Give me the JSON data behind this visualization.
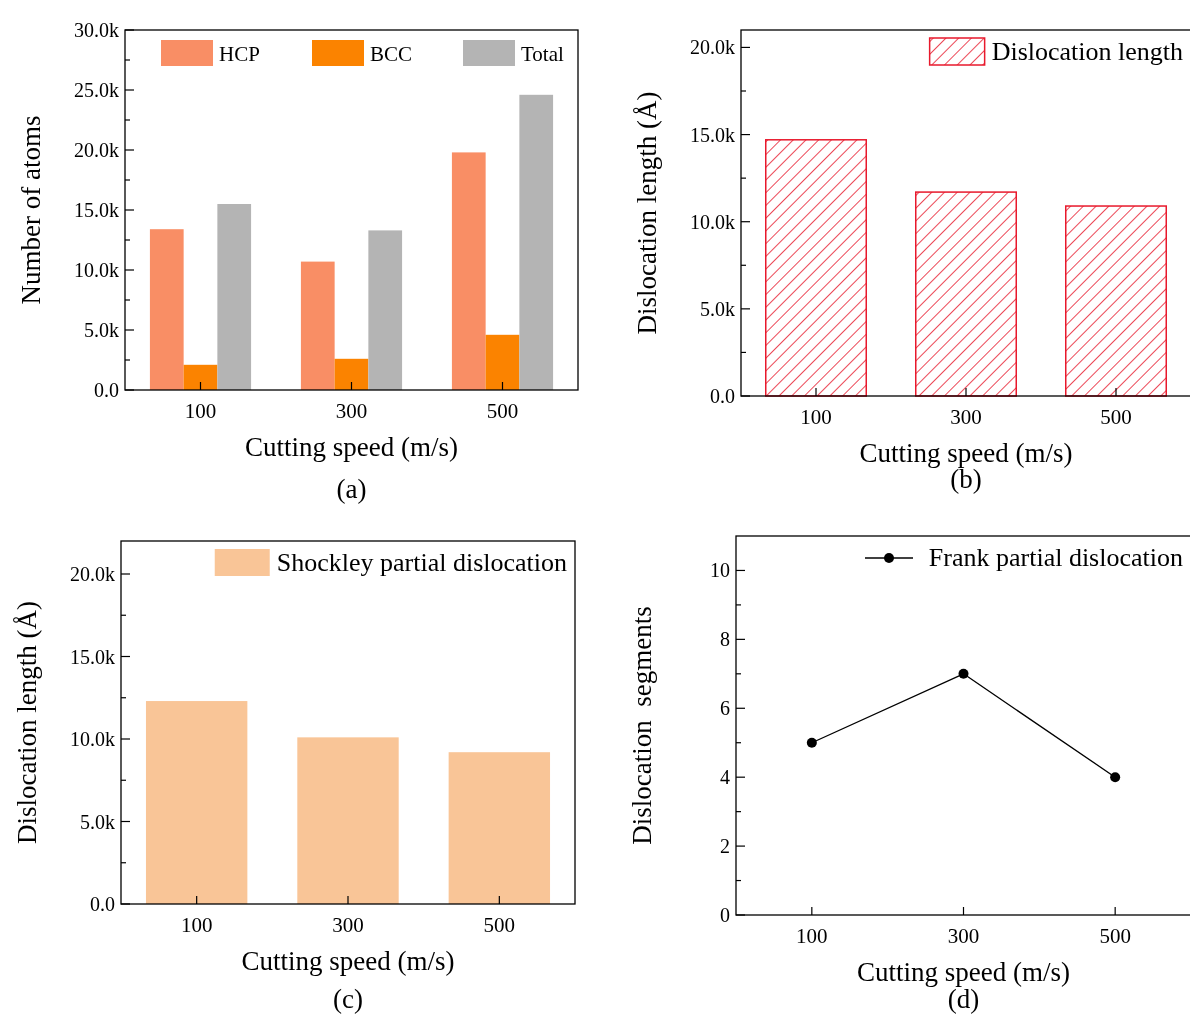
{
  "chart_data": [
    {
      "type": "bar",
      "categories": [
        "100",
        "300",
        "500"
      ],
      "xlabel": "Cutting speed (m/s)",
      "ylabel": "Number of atoms",
      "ylim": [
        0,
        30000
      ],
      "yticks": [
        {
          "value": 0,
          "label": "0.0"
        },
        {
          "value": 2500,
          "label": null
        },
        {
          "value": 5000,
          "label": "5.0k"
        },
        {
          "value": 7500,
          "label": null
        },
        {
          "value": 10000,
          "label": "10.0k"
        },
        {
          "value": 12500,
          "label": null
        },
        {
          "value": 15000,
          "label": "15.0k"
        },
        {
          "value": 17500,
          "label": null
        },
        {
          "value": 20000,
          "label": "20.0k"
        },
        {
          "value": 22500,
          "label": null
        },
        {
          "value": 25000,
          "label": "25.0k"
        },
        {
          "value": 27500,
          "label": null
        },
        {
          "value": 30000,
          "label": "30.0k"
        }
      ],
      "legend": "top",
      "annotations": [
        "(a)"
      ],
      "series": [
        {
          "name": "HCP",
          "color": "#f98e65",
          "values": [
            13400,
            10700,
            19800
          ]
        },
        {
          "name": "BCC",
          "color": "#fb8300",
          "values": [
            2100,
            2600,
            4600
          ]
        },
        {
          "name": "Total",
          "color": "#b4b4b4",
          "values": [
            15500,
            13300,
            24600
          ]
        }
      ]
    },
    {
      "type": "bar",
      "categories": [
        "100",
        "300",
        "500"
      ],
      "xlabel": "Cutting speed (m/s)",
      "ylabel": "Dislocation length (Å)",
      "ylim": [
        0,
        21000
      ],
      "yticks": [
        {
          "value": 0,
          "label": "0.0"
        },
        {
          "value": 2500,
          "label": null
        },
        {
          "value": 5000,
          "label": "5.0k"
        },
        {
          "value": 7500,
          "label": null
        },
        {
          "value": 10000,
          "label": "10.0k"
        },
        {
          "value": 12500,
          "label": null
        },
        {
          "value": 15000,
          "label": "15.0k"
        },
        {
          "value": 17500,
          "label": null
        },
        {
          "value": 20000,
          "label": "20.0k"
        }
      ],
      "legend": "top right",
      "annotations": [
        "(b)"
      ],
      "series": [
        {
          "name": "Dislocation length",
          "color": "#e8192c",
          "values": [
            14700,
            11700,
            10900
          ]
        }
      ]
    },
    {
      "type": "bar",
      "categories": [
        "100",
        "300",
        "500"
      ],
      "xlabel": "Cutting speed (m/s)",
      "ylabel": "Dislocation length (Å)",
      "ylim": [
        0,
        22000
      ],
      "yticks": [
        {
          "value": 0,
          "label": "0.0"
        },
        {
          "value": 2500,
          "label": null
        },
        {
          "value": 5000,
          "label": "5.0k"
        },
        {
          "value": 7500,
          "label": null
        },
        {
          "value": 10000,
          "label": "10.0k"
        },
        {
          "value": 12500,
          "label": null
        },
        {
          "value": 15000,
          "label": "15.0k"
        },
        {
          "value": 17500,
          "label": null
        },
        {
          "value": 20000,
          "label": "20.0k"
        }
      ],
      "legend": "top right",
      "annotations": [
        "(c)"
      ],
      "series": [
        {
          "name": "Shockley partial dislocation",
          "color": "#f9c597",
          "values": [
            12300,
            10100,
            9200
          ]
        }
      ]
    },
    {
      "type": "line",
      "categories": [
        "100",
        "300",
        "500"
      ],
      "xlabel": "Cutting speed (m/s)",
      "ylabel": "Dislocation  segments",
      "ylim": [
        0,
        11
      ],
      "yticks": [
        0,
        {
          "value": 1,
          "label": null
        },
        2,
        {
          "value": 3,
          "label": null
        },
        4,
        {
          "value": 5,
          "label": null
        },
        6,
        {
          "value": 7,
          "label": null
        },
        8,
        {
          "value": 9,
          "label": null
        },
        10
      ],
      "legend": "top right",
      "marker": "circle",
      "line_style": "solid",
      "annotations": [
        "(d)"
      ],
      "series": [
        {
          "name": "Frank partial dislocation",
          "color": "#000000",
          "values": [
            5,
            7,
            4
          ]
        }
      ]
    }
  ]
}
